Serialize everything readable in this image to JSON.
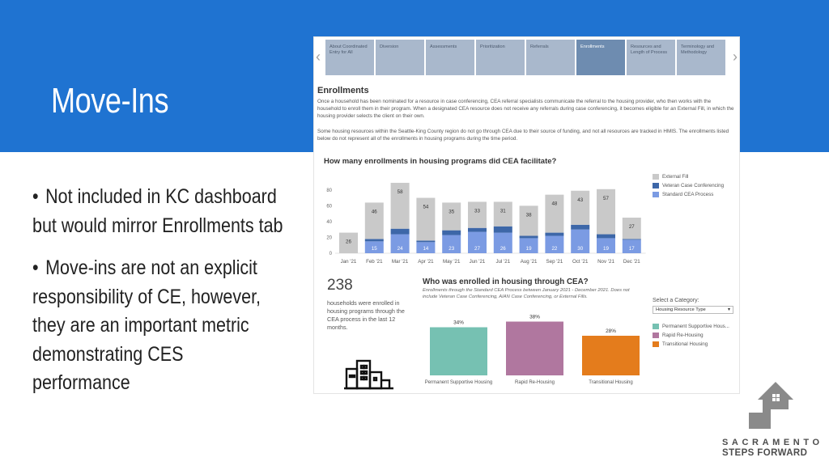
{
  "slide": {
    "title": "Move-Ins",
    "bullets": [
      "Not included in KC dashboard but would mirror Enrollments tab",
      "Move-ins are not an explicit responsibility of CE, however, they are an important metric demonstrating CES performance"
    ],
    "bullet_glyph": "•",
    "band_color": "#1f73d1"
  },
  "dashboard": {
    "nav_left": "‹",
    "nav_right": "›",
    "tabs": [
      {
        "label": "About Coordinated Entry for All",
        "active": false
      },
      {
        "label": "Diversion",
        "active": false
      },
      {
        "label": "Assessments",
        "active": false
      },
      {
        "label": "Prioritization",
        "active": false
      },
      {
        "label": "Referrals",
        "active": false
      },
      {
        "label": "Enrollments",
        "active": true
      },
      {
        "label": "Resources and Length of Process",
        "active": false
      },
      {
        "label": "Terminology and Methodology",
        "active": false
      }
    ],
    "section_title": "Enrollments",
    "paragraph1": "Once a household has been nominated for a resource in case conferencing, CEA referral specialists communicate the referral to the housing provider, who then works with the household to enroll them in their program. When a designated CEA resource does not receive any referrals during case conferencing, it becomes eligible for an External Fill, in which the housing provider selects the client on their own.",
    "paragraph2": "Some housing resources within the Seattle-King County region do not go through CEA due to their source of funding, and not all resources are tracked in HMIS. The enrollments listed below do not represent all of the enrollments in housing programs during the time period.",
    "kpi": {
      "value": "238",
      "description": "households were enrolled in housing programs through the CEA process in the last 12 months."
    },
    "who_title": "Who was enrolled in housing through CEA?",
    "who_note": "Enrollments through the Standard CEA Process between January 2021 - December 2021. Does not include Veteran Case Conferencing, AIAN Case Conferencing, or External Fills.",
    "category_label": "Select a Category:",
    "category_value": "Housing Resource Type",
    "category_caret": "▾"
  },
  "chart_data": [
    {
      "type": "bar",
      "stacked": true,
      "title": "How many enrollments in housing programs did CEA facilitate?",
      "categories": [
        "Jan '21",
        "Feb '21",
        "Mar '21",
        "Apr '21",
        "May '21",
        "Jun '21",
        "Jul '21",
        "Aug '21",
        "Sep '21",
        "Oct '21",
        "Nov '21",
        "Dec '21"
      ],
      "series": [
        {
          "name": "Standard CEA Process",
          "color": "#7b9be3",
          "values": [
            0,
            15,
            24,
            14,
            23,
            27,
            26,
            19,
            22,
            30,
            19,
            17
          ],
          "labels": [
            "",
            "15",
            "24",
            "14",
            "23",
            "27",
            "26",
            "19",
            "22",
            "30",
            "19",
            "17"
          ]
        },
        {
          "name": "Veteran Case Conferencing",
          "color": "#3d67a8",
          "values": [
            0,
            3,
            7,
            2,
            6,
            5,
            8,
            3,
            4,
            6,
            5,
            1
          ],
          "labels": []
        },
        {
          "name": "External Fill",
          "color": "#c9c9c9",
          "values": [
            26,
            46,
            58,
            54,
            35,
            33,
            31,
            38,
            48,
            43,
            57,
            27
          ],
          "labels": [
            "26",
            "46",
            "58",
            "54",
            "35",
            "33",
            "31",
            "38",
            "48",
            "43",
            "57",
            "27"
          ]
        }
      ],
      "ylim": [
        0,
        90
      ],
      "yticks": [
        0,
        20,
        40,
        60,
        80
      ],
      "legend": "top-right",
      "grid": false
    },
    {
      "type": "bar",
      "title": "",
      "categories": [
        "Permanent Supportive Housing",
        "Rapid Re-Housing",
        "Transitional Housing"
      ],
      "values": [
        34,
        38,
        28
      ],
      "value_labels": [
        "34%",
        "38%",
        "28%"
      ],
      "colors": [
        "#76c1b2",
        "#b0779f",
        "#e47c1c"
      ],
      "legend_labels": [
        "Permanent Supportive Hous...",
        "Rapid Re-Housing",
        "Transitional Housing"
      ],
      "legend": "right",
      "ylim": [
        0,
        40
      ]
    }
  ],
  "logo": {
    "line1": "SACRAMENTO",
    "line2": "STEPS FORWARD"
  }
}
